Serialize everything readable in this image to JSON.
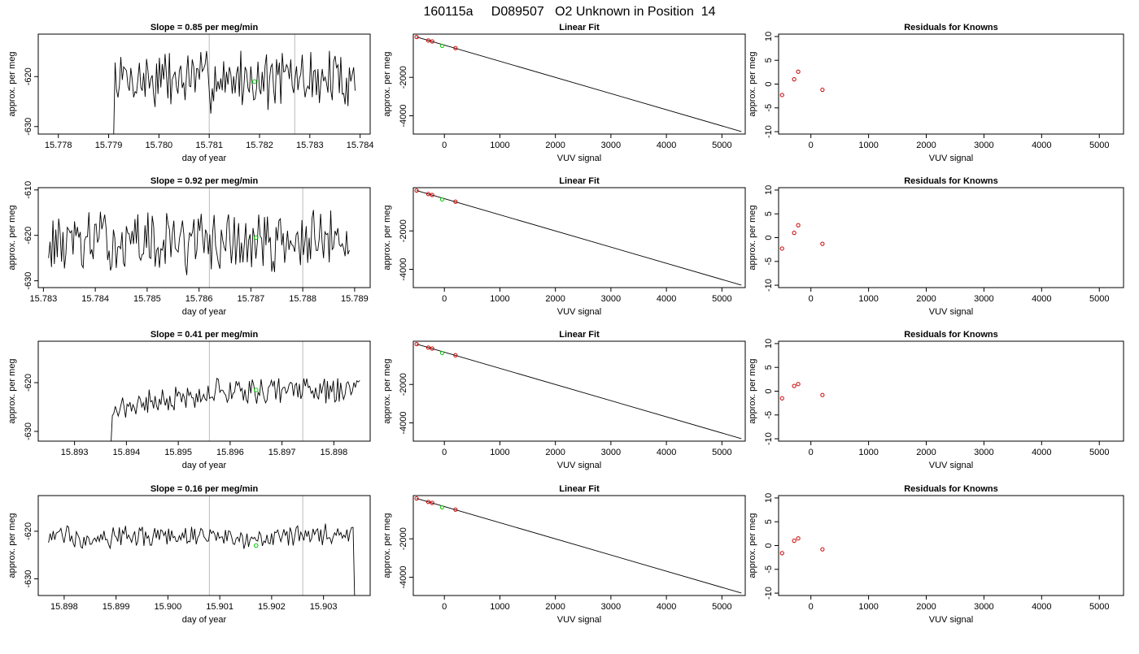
{
  "figure_title": "160115a     D089507   O2 Unknown in Position  14",
  "colors": {
    "series": "#000000",
    "marker_unknown": "#00cc00",
    "marker_known": "#cc0000",
    "vline": "#bbbbbb"
  },
  "chart_data": [
    {
      "type": "line",
      "title": "Slope =  0.85  per meg/min",
      "xlabel": "day of year",
      "ylabel": "approx. per meg",
      "xlim": [
        15.7776,
        15.7842
      ],
      "ylim": [
        -631.5,
        -611.5
      ],
      "xticks": [
        15.778,
        15.779,
        15.78,
        15.781,
        15.782,
        15.783,
        15.784
      ],
      "xtick_labels": [
        "15.778",
        "15.779",
        "15.780",
        "15.781",
        "15.782",
        "15.783",
        "15.784"
      ],
      "yticks": [
        -630,
        -620
      ],
      "ytick_labels": [
        "-630",
        "-620"
      ],
      "vlines": [
        15.781,
        15.7827
      ],
      "trace": {
        "x_start": 15.7791,
        "x_end": 15.7839,
        "n": 170,
        "mean": -620.5,
        "amp": 4.5,
        "start_value": -632,
        "seed": 7
      },
      "marker": {
        "x": 15.7819,
        "y": -621
      }
    },
    {
      "type": "line",
      "title": "Slope =  0.92  per meg/min",
      "xlabel": "day of year",
      "ylabel": "approx. per meg",
      "xlim": [
        15.7829,
        15.7893
      ],
      "ylim": [
        -631.5,
        -609.5
      ],
      "xticks": [
        15.783,
        15.784,
        15.785,
        15.786,
        15.787,
        15.788,
        15.789
      ],
      "xtick_labels": [
        "15.783",
        "15.784",
        "15.785",
        "15.786",
        "15.787",
        "15.788",
        "15.789"
      ],
      "yticks": [
        -630,
        -620,
        -610
      ],
      "ytick_labels": [
        "-630",
        "-620",
        "-610"
      ],
      "vlines": [
        15.7862,
        15.788
      ],
      "trace": {
        "x_start": 15.7831,
        "x_end": 15.7889,
        "n": 210,
        "mean": -621.5,
        "amp": 5.0,
        "start_value": -625,
        "seed": 13
      },
      "marker": {
        "x": 15.7871,
        "y": -620.5
      }
    },
    {
      "type": "line",
      "title": "Slope =  0.41  per meg/min",
      "xlabel": "day of year",
      "ylabel": "approx. per meg",
      "xlim": [
        15.8923,
        15.8987
      ],
      "ylim": [
        -632,
        -611.5
      ],
      "xticks": [
        15.893,
        15.894,
        15.895,
        15.896,
        15.897,
        15.898
      ],
      "xtick_labels": [
        "15.893",
        "15.894",
        "15.895",
        "15.896",
        "15.897",
        "15.898"
      ],
      "yticks": [
        -630,
        -620
      ],
      "ytick_labels": [
        "-630",
        "-620"
      ],
      "vlines": [
        15.8956,
        15.8974
      ],
      "trace": {
        "x_start": 15.8937,
        "x_end": 15.8985,
        "n": 170,
        "mean_start": -625.5,
        "mean_end": -621.5,
        "amp": 2.0,
        "start_value": -633,
        "seed": 21
      },
      "marker": {
        "x": 15.8965,
        "y": -621.5
      }
    },
    {
      "type": "line",
      "title": "Slope =  0.16  per meg/min",
      "xlabel": "day of year",
      "ylabel": "approx. per meg",
      "xlim": [
        15.8975,
        15.9039
      ],
      "ylim": [
        -633.5,
        -612.5
      ],
      "xticks": [
        15.898,
        15.899,
        15.9,
        15.901,
        15.902,
        15.903
      ],
      "xtick_labels": [
        "15.898",
        "15.899",
        "15.900",
        "15.901",
        "15.902",
        "15.903"
      ],
      "yticks": [
        -630,
        -620
      ],
      "ytick_labels": [
        "-630",
        "-620"
      ],
      "vlines": [
        15.9008,
        15.9026
      ],
      "trace": {
        "x_start": 15.8977,
        "x_end": 15.9036,
        "n": 200,
        "mean": -621.0,
        "amp": 1.8,
        "end_value": -634,
        "seed": 33
      },
      "marker": {
        "x": 15.9017,
        "y": -623
      }
    },
    {
      "type": "scatter",
      "title": "Linear Fit",
      "xlabel": "VUV signal",
      "ylabel": "approx. per meg",
      "xlim": [
        -560,
        5420
      ],
      "ylim": [
        -4950,
        250
      ],
      "xticks": [
        0,
        1000,
        2000,
        3000,
        4000,
        5000
      ],
      "xtick_labels": [
        "0",
        "1000",
        "2000",
        "3000",
        "4000",
        "5000"
      ],
      "yticks": [
        -4000,
        -2000
      ],
      "ytick_labels": [
        "-4000",
        "-2000"
      ],
      "fit_line": {
        "x": [
          -500,
          5350
        ],
        "y": [
          100,
          -4820
        ]
      },
      "known_points": {
        "x": [
          -500,
          -290,
          -220,
          200
        ],
        "y": [
          100,
          -80,
          -130,
          -480
        ]
      },
      "unknown_point": {
        "x": -40,
        "y": -360
      }
    },
    {
      "type": "scatter",
      "title": "Linear Fit",
      "xlabel": "VUV signal",
      "ylabel": "approx. per meg",
      "xlim": [
        -560,
        5420
      ],
      "ylim": [
        -4950,
        250
      ],
      "xticks": [
        0,
        1000,
        2000,
        3000,
        4000,
        5000
      ],
      "xtick_labels": [
        "0",
        "1000",
        "2000",
        "3000",
        "4000",
        "5000"
      ],
      "yticks": [
        -4000,
        -2000
      ],
      "ytick_labels": [
        "-4000",
        "-2000"
      ],
      "fit_line": {
        "x": [
          -500,
          5350
        ],
        "y": [
          100,
          -4820
        ]
      },
      "known_points": {
        "x": [
          -500,
          -290,
          -220,
          200
        ],
        "y": [
          100,
          -80,
          -130,
          -480
        ]
      },
      "unknown_point": {
        "x": -40,
        "y": -360
      }
    },
    {
      "type": "scatter",
      "title": "Linear Fit",
      "xlabel": "VUV signal",
      "ylabel": "approx. per meg",
      "xlim": [
        -560,
        5420
      ],
      "ylim": [
        -4950,
        250
      ],
      "xticks": [
        0,
        1000,
        2000,
        3000,
        4000,
        5000
      ],
      "xtick_labels": [
        "0",
        "1000",
        "2000",
        "3000",
        "4000",
        "5000"
      ],
      "yticks": [
        -4000,
        -2000
      ],
      "ytick_labels": [
        "-4000",
        "-2000"
      ],
      "fit_line": {
        "x": [
          -500,
          5350
        ],
        "y": [
          100,
          -4820
        ]
      },
      "known_points": {
        "x": [
          -500,
          -290,
          -220,
          200
        ],
        "y": [
          100,
          -80,
          -130,
          -480
        ]
      },
      "unknown_point": {
        "x": -40,
        "y": -360
      }
    },
    {
      "type": "scatter",
      "title": "Linear Fit",
      "xlabel": "VUV signal",
      "ylabel": "approx. per meg",
      "xlim": [
        -560,
        5420
      ],
      "ylim": [
        -4950,
        250
      ],
      "xticks": [
        0,
        1000,
        2000,
        3000,
        4000,
        5000
      ],
      "xtick_labels": [
        "0",
        "1000",
        "2000",
        "3000",
        "4000",
        "5000"
      ],
      "yticks": [
        -4000,
        -2000
      ],
      "ytick_labels": [
        "-4000",
        "-2000"
      ],
      "fit_line": {
        "x": [
          -500,
          5350
        ],
        "y": [
          100,
          -4820
        ]
      },
      "known_points": {
        "x": [
          -500,
          -290,
          -220,
          200
        ],
        "y": [
          100,
          -80,
          -130,
          -480
        ]
      },
      "unknown_point": {
        "x": -40,
        "y": -360
      }
    },
    {
      "type": "scatter",
      "title": "Residuals for Knowns",
      "xlabel": "VUV signal",
      "ylabel": "approx. per meg",
      "xlim": [
        -560,
        5420
      ],
      "ylim": [
        -10.5,
        10.5
      ],
      "xticks": [
        0,
        1000,
        2000,
        3000,
        4000,
        5000
      ],
      "xtick_labels": [
        "0",
        "1000",
        "2000",
        "3000",
        "4000",
        "5000"
      ],
      "yticks": [
        -10,
        -5,
        0,
        5,
        10
      ],
      "ytick_labels": [
        "-10",
        "-5",
        "0",
        "5",
        "10"
      ],
      "points": {
        "x": [
          -500,
          -290,
          -220,
          200
        ],
        "y": [
          -2.3,
          1.0,
          2.6,
          -1.2
        ]
      }
    },
    {
      "type": "scatter",
      "title": "Residuals for Knowns",
      "xlabel": "VUV signal",
      "ylabel": "approx. per meg",
      "xlim": [
        -560,
        5420
      ],
      "ylim": [
        -10.5,
        10.5
      ],
      "xticks": [
        0,
        1000,
        2000,
        3000,
        4000,
        5000
      ],
      "xtick_labels": [
        "0",
        "1000",
        "2000",
        "3000",
        "4000",
        "5000"
      ],
      "yticks": [
        -10,
        -5,
        0,
        5,
        10
      ],
      "ytick_labels": [
        "-10",
        "-5",
        "0",
        "5",
        "10"
      ],
      "points": {
        "x": [
          -500,
          -290,
          -220,
          200
        ],
        "y": [
          -2.3,
          1.0,
          2.6,
          -1.3
        ]
      }
    },
    {
      "type": "scatter",
      "title": "Residuals for Knowns",
      "xlabel": "VUV signal",
      "ylabel": "approx. per meg",
      "xlim": [
        -560,
        5420
      ],
      "ylim": [
        -10.5,
        10.5
      ],
      "xticks": [
        0,
        1000,
        2000,
        3000,
        4000,
        5000
      ],
      "xtick_labels": [
        "0",
        "1000",
        "2000",
        "3000",
        "4000",
        "5000"
      ],
      "yticks": [
        -10,
        -5,
        0,
        5,
        10
      ],
      "ytick_labels": [
        "-10",
        "-5",
        "0",
        "5",
        "10"
      ],
      "points": {
        "x": [
          -500,
          -290,
          -220,
          200
        ],
        "y": [
          -1.5,
          1.1,
          1.5,
          -0.8
        ]
      }
    },
    {
      "type": "scatter",
      "title": "Residuals for Knowns",
      "xlabel": "VUV signal",
      "ylabel": "approx. per meg",
      "xlim": [
        -560,
        5420
      ],
      "ylim": [
        -10.5,
        10.5
      ],
      "xticks": [
        0,
        1000,
        2000,
        3000,
        4000,
        5000
      ],
      "xtick_labels": [
        "0",
        "1000",
        "2000",
        "3000",
        "4000",
        "5000"
      ],
      "yticks": [
        -10,
        -5,
        0,
        5,
        10
      ],
      "ytick_labels": [
        "-10",
        "-5",
        "0",
        "5",
        "10"
      ],
      "points": {
        "x": [
          -500,
          -290,
          -220,
          200
        ],
        "y": [
          -1.6,
          1.0,
          1.5,
          -0.8
        ]
      }
    }
  ]
}
